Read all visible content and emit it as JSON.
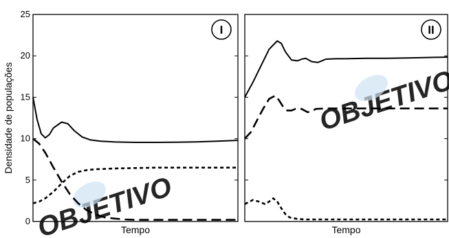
{
  "watermark": {
    "text": "OBJETIVO",
    "color": "#cfe3f3"
  },
  "chart_data": [
    {
      "panel": "I",
      "type": "line",
      "xlabel": "Tempo",
      "ylabel": "Densidade de populações",
      "ylim": [
        0,
        25
      ],
      "yticks": [
        "0",
        "5",
        "10",
        "15",
        "20",
        "25"
      ],
      "xlim": [
        0,
        100
      ],
      "series": [
        {
          "style": "solid",
          "x": [
            0,
            2,
            4,
            6,
            8,
            10,
            14,
            17,
            20,
            24,
            28,
            33,
            40,
            50,
            60,
            70,
            80,
            90,
            100
          ],
          "y": [
            15,
            12.3,
            10.6,
            10.1,
            10.5,
            11.3,
            12.0,
            11.8,
            11.0,
            10.2,
            9.85,
            9.7,
            9.6,
            9.55,
            9.55,
            9.58,
            9.62,
            9.7,
            9.8
          ]
        },
        {
          "style": "dashed-long",
          "x": [
            0,
            3,
            6,
            10,
            14,
            18,
            22,
            26,
            30,
            35,
            40,
            45,
            50,
            60,
            70,
            80,
            90,
            100
          ],
          "y": [
            10,
            9.4,
            8.3,
            6.5,
            4.8,
            3.3,
            2.2,
            1.4,
            0.9,
            0.5,
            0.35,
            0.25,
            0.2,
            0.2,
            0.2,
            0.2,
            0.2,
            0.2
          ]
        },
        {
          "style": "dashed-short",
          "x": [
            0,
            3,
            6,
            10,
            14,
            18,
            22,
            26,
            30,
            35,
            40,
            50,
            60,
            70,
            80,
            90,
            100
          ],
          "y": [
            2.2,
            2.4,
            2.8,
            3.6,
            4.6,
            5.5,
            6.0,
            6.2,
            6.3,
            6.35,
            6.4,
            6.45,
            6.5,
            6.5,
            6.5,
            6.5,
            6.5
          ]
        }
      ]
    },
    {
      "panel": "II",
      "type": "line",
      "xlabel": "Tempo",
      "ylim": [
        0,
        25
      ],
      "xlim": [
        0,
        100
      ],
      "series": [
        {
          "style": "solid",
          "x": [
            0,
            4,
            8,
            12,
            16,
            18,
            20,
            23,
            26,
            28,
            30,
            33,
            36,
            38,
            40,
            45,
            50,
            60,
            70,
            80,
            90,
            100
          ],
          "y": [
            15,
            16.8,
            18.8,
            20.8,
            21.8,
            21.5,
            20.5,
            19.5,
            19.4,
            19.6,
            19.7,
            19.3,
            19.2,
            19.4,
            19.6,
            19.65,
            19.65,
            19.7,
            19.7,
            19.75,
            19.8,
            19.85
          ]
        },
        {
          "style": "dashed-long",
          "x": [
            0,
            3,
            6,
            9,
            12,
            15,
            17,
            19,
            21,
            23,
            25,
            28,
            31,
            33,
            35,
            40,
            50,
            60,
            70,
            80,
            90,
            100
          ],
          "y": [
            10,
            10.8,
            12.2,
            13.6,
            14.8,
            15.2,
            14.6,
            13.8,
            13.4,
            13.4,
            13.6,
            13.6,
            13.2,
            13.3,
            13.6,
            13.65,
            13.65,
            13.65,
            13.65,
            13.65,
            13.65,
            13.65
          ]
        },
        {
          "style": "dashed-short",
          "x": [
            0,
            4,
            7,
            10,
            12,
            14,
            16,
            18,
            20,
            22,
            26,
            30,
            35,
            40,
            50,
            60,
            70,
            80,
            90,
            100
          ],
          "y": [
            2.1,
            2.6,
            2.4,
            2.1,
            2.4,
            2.8,
            2.4,
            1.6,
            0.9,
            0.5,
            0.3,
            0.25,
            0.25,
            0.25,
            0.25,
            0.25,
            0.25,
            0.25,
            0.25,
            0.25
          ]
        }
      ]
    }
  ]
}
